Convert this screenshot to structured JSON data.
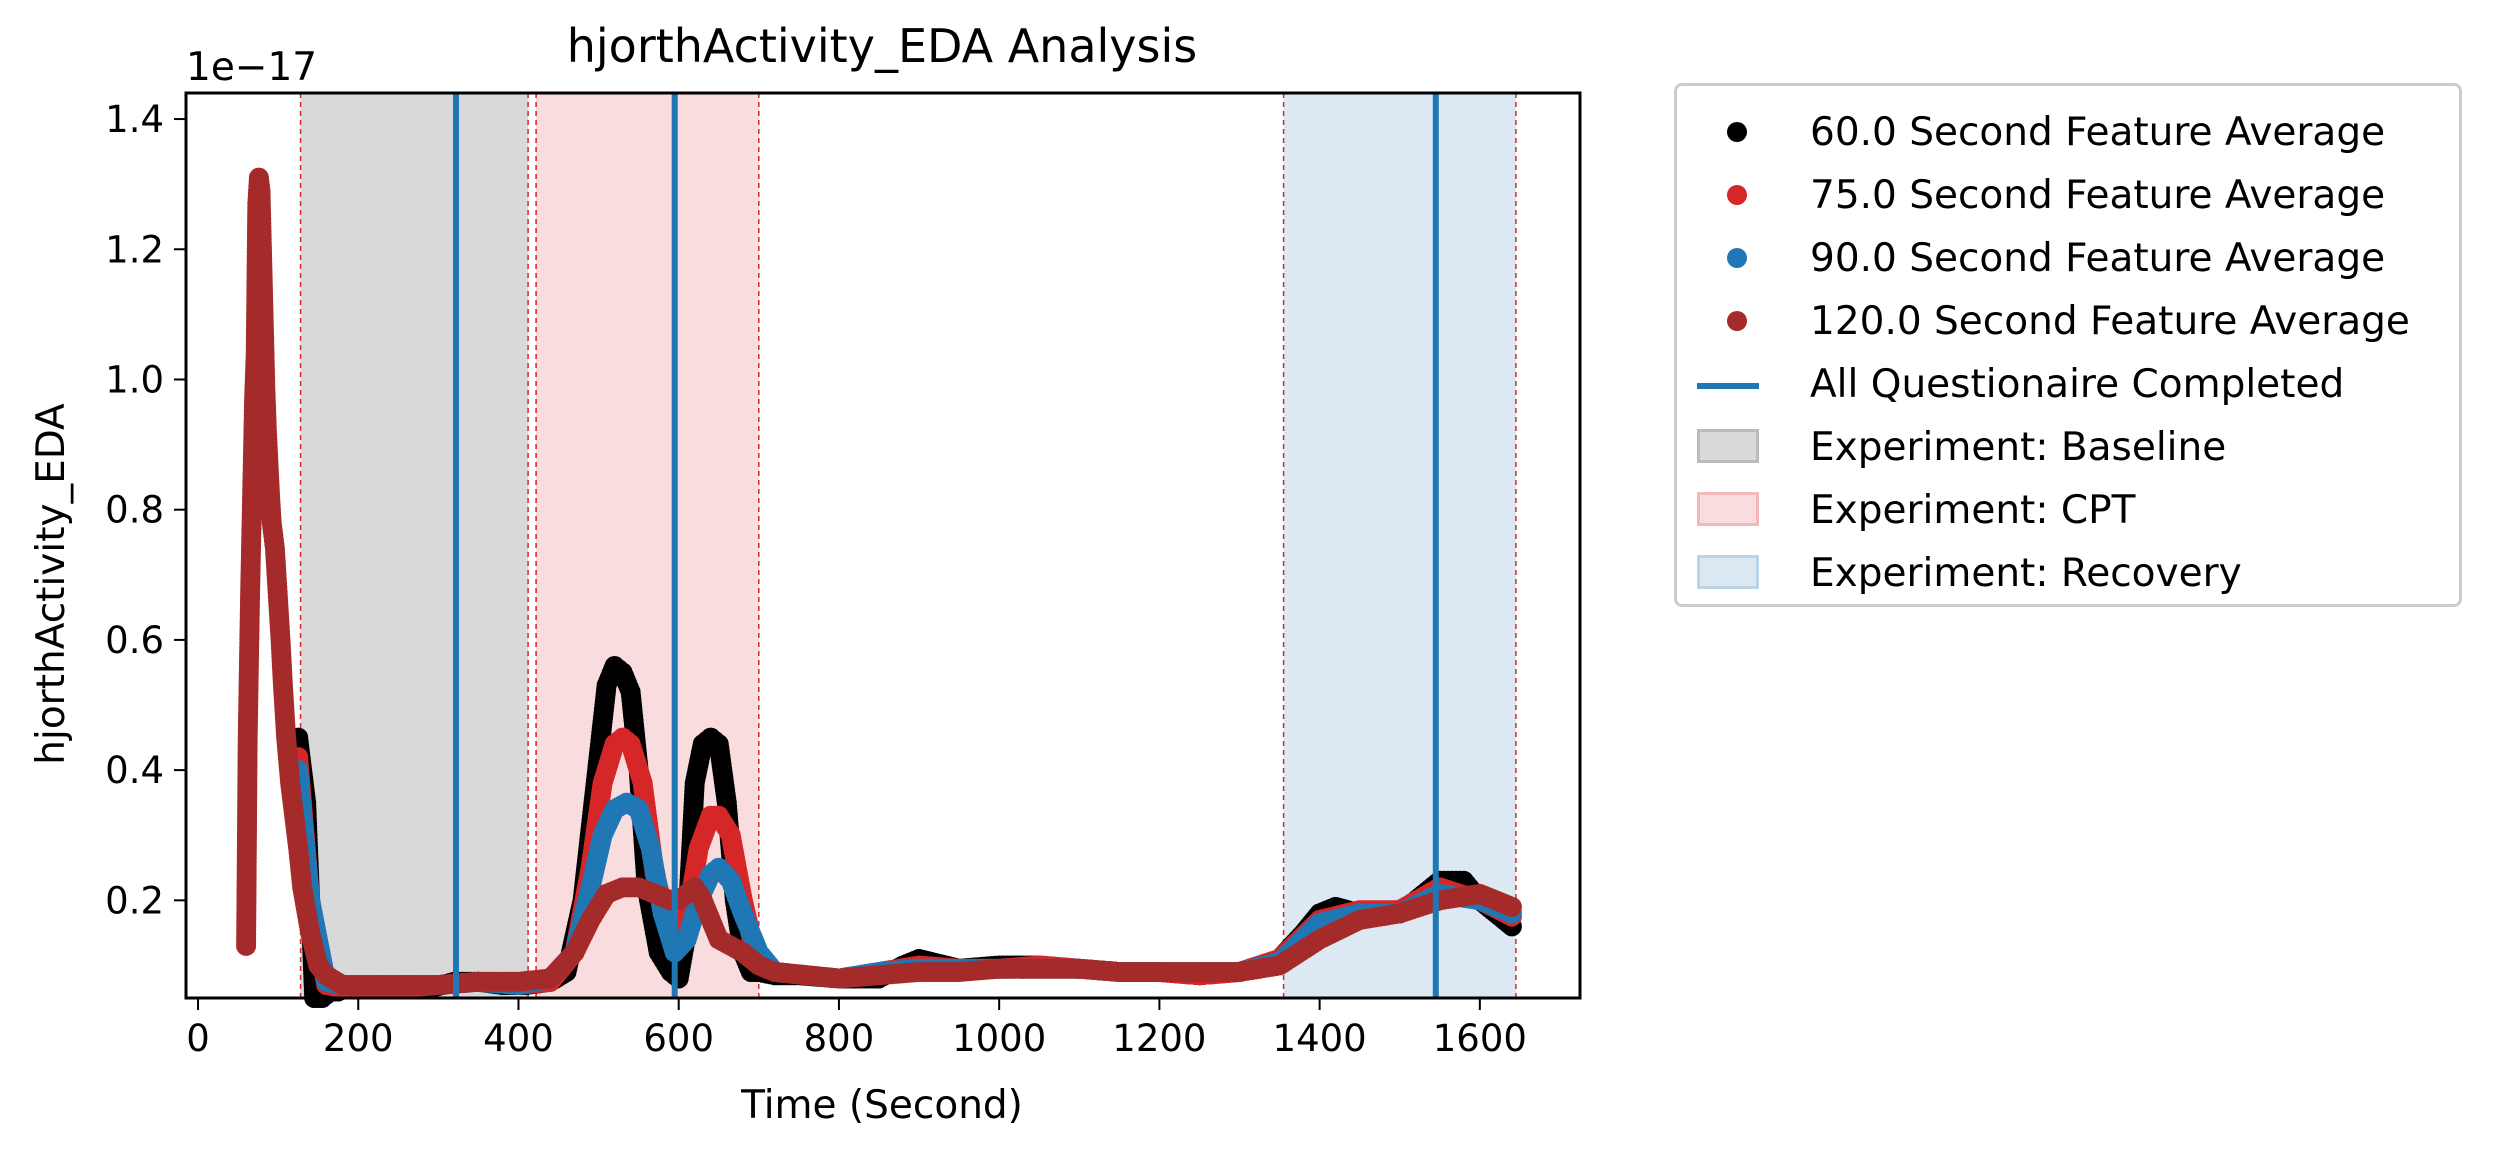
{
  "chart_data": {
    "type": "scatter",
    "title": "hjorthActivity_EDA Analysis",
    "xlabel": "Time (Second)",
    "ylabel": "hjorthActivity_EDA",
    "y_offset_label": "1e−17",
    "xlim": [
      -15,
      1725
    ],
    "ylim": [
      0.05,
      1.44
    ],
    "xticks": [
      0,
      200,
      400,
      600,
      800,
      1000,
      1200,
      1400,
      1600
    ],
    "yticks": [
      0.2,
      0.4,
      0.6,
      0.8,
      1.0,
      1.2,
      1.4
    ],
    "ytick_labels": [
      "0.2",
      "0.4",
      "0.6",
      "0.8",
      "1.0",
      "1.2",
      "1.4"
    ],
    "grid": false,
    "legend_position": "outside-right",
    "series": [
      {
        "name": "60.0 Second Feature Average",
        "color": "#000000",
        "x": [
          125,
          135,
          145,
          155,
          165,
          175,
          185,
          200,
          230,
          260,
          290,
          320,
          350,
          380,
          410,
          440,
          460,
          480,
          500,
          510,
          520,
          530,
          540,
          550,
          560,
          575,
          590,
          600,
          610,
          620,
          630,
          640,
          650,
          660,
          670,
          680,
          690,
          700,
          720,
          750,
          800,
          850,
          880,
          900,
          950,
          1000,
          1050,
          1100,
          1150,
          1200,
          1250,
          1300,
          1350,
          1380,
          1400,
          1420,
          1450,
          1500,
          1550,
          1580,
          1600,
          1620,
          1640
        ],
        "y": [
          0.45,
          0.35,
          0.05,
          0.05,
          0.06,
          0.06,
          0.065,
          0.065,
          0.065,
          0.07,
          0.065,
          0.075,
          0.075,
          0.07,
          0.07,
          0.075,
          0.09,
          0.2,
          0.42,
          0.53,
          0.56,
          0.55,
          0.52,
          0.4,
          0.22,
          0.12,
          0.09,
          0.08,
          0.15,
          0.38,
          0.44,
          0.45,
          0.44,
          0.35,
          0.2,
          0.12,
          0.09,
          0.09,
          0.085,
          0.085,
          0.08,
          0.08,
          0.1,
          0.11,
          0.095,
          0.1,
          0.1,
          0.095,
          0.09,
          0.09,
          0.085,
          0.09,
          0.11,
          0.15,
          0.18,
          0.19,
          0.18,
          0.18,
          0.23,
          0.23,
          0.2,
          0.18,
          0.16
        ]
      },
      {
        "name": "75.0 Second Feature Average",
        "color": "#d62728",
        "x": [
          125,
          140,
          160,
          180,
          200,
          250,
          300,
          350,
          400,
          440,
          470,
          490,
          505,
          520,
          530,
          540,
          555,
          570,
          590,
          600,
          610,
          625,
          640,
          650,
          665,
          680,
          695,
          720,
          760,
          800,
          850,
          900,
          950,
          1000,
          1050,
          1100,
          1150,
          1200,
          1250,
          1300,
          1350,
          1400,
          1450,
          1500,
          1550,
          1600,
          1640
        ],
        "y": [
          0.42,
          0.2,
          0.07,
          0.065,
          0.065,
          0.065,
          0.07,
          0.075,
          0.07,
          0.075,
          0.12,
          0.25,
          0.38,
          0.44,
          0.45,
          0.44,
          0.38,
          0.24,
          0.15,
          0.13,
          0.17,
          0.28,
          0.33,
          0.33,
          0.3,
          0.2,
          0.12,
          0.09,
          0.085,
          0.08,
          0.09,
          0.1,
          0.095,
          0.095,
          0.1,
          0.095,
          0.09,
          0.09,
          0.085,
          0.09,
          0.11,
          0.17,
          0.185,
          0.185,
          0.22,
          0.2,
          0.175
        ]
      },
      {
        "name": "90.0 Second Feature Average",
        "color": "#1f77b4",
        "x": [
          125,
          140,
          160,
          180,
          200,
          250,
          300,
          350,
          400,
          440,
          470,
          490,
          505,
          520,
          535,
          550,
          565,
          580,
          595,
          610,
          625,
          640,
          650,
          665,
          680,
          700,
          720,
          760,
          800,
          850,
          900,
          950,
          1000,
          1050,
          1100,
          1150,
          1200,
          1250,
          1300,
          1350,
          1400,
          1450,
          1500,
          1550,
          1600,
          1640
        ],
        "y": [
          0.4,
          0.2,
          0.075,
          0.07,
          0.07,
          0.07,
          0.07,
          0.075,
          0.07,
          0.08,
          0.12,
          0.22,
          0.3,
          0.34,
          0.35,
          0.34,
          0.28,
          0.18,
          0.12,
          0.14,
          0.2,
          0.24,
          0.25,
          0.23,
          0.18,
          0.12,
          0.09,
          0.085,
          0.08,
          0.09,
          0.095,
          0.095,
          0.095,
          0.095,
          0.095,
          0.09,
          0.09,
          0.09,
          0.09,
          0.105,
          0.165,
          0.18,
          0.18,
          0.21,
          0.2,
          0.18
        ]
      },
      {
        "name": "120.0 Second Feature Average",
        "color": "#a52a2a",
        "x": [
          60,
          62,
          65,
          68,
          70,
          72,
          74,
          76,
          78,
          80,
          82,
          84,
          86,
          88,
          90,
          92,
          94,
          96,
          98,
          100,
          103,
          106,
          110,
          115,
          120,
          125,
          130,
          140,
          150,
          160,
          180,
          200,
          250,
          300,
          350,
          400,
          440,
          470,
          490,
          510,
          530,
          550,
          570,
          590,
          600,
          610,
          620,
          630,
          640,
          650,
          665,
          680,
          700,
          720,
          760,
          800,
          850,
          900,
          950,
          1000,
          1050,
          1100,
          1150,
          1200,
          1250,
          1300,
          1350,
          1400,
          1450,
          1500,
          1550,
          1600,
          1640
        ],
        "y": [
          0.13,
          0.45,
          0.67,
          0.85,
          0.97,
          1.04,
          1.27,
          1.31,
          1.29,
          1.19,
          1.09,
          0.99,
          0.92,
          0.87,
          0.82,
          0.78,
          0.76,
          0.74,
          0.7,
          0.66,
          0.6,
          0.53,
          0.45,
          0.38,
          0.33,
          0.28,
          0.22,
          0.15,
          0.1,
          0.085,
          0.07,
          0.07,
          0.07,
          0.07,
          0.075,
          0.075,
          0.08,
          0.12,
          0.17,
          0.21,
          0.22,
          0.22,
          0.21,
          0.2,
          0.2,
          0.21,
          0.22,
          0.2,
          0.17,
          0.14,
          0.13,
          0.12,
          0.1,
          0.09,
          0.085,
          0.08,
          0.085,
          0.09,
          0.09,
          0.095,
          0.095,
          0.095,
          0.09,
          0.09,
          0.09,
          0.09,
          0.1,
          0.14,
          0.17,
          0.18,
          0.2,
          0.21,
          0.19
        ]
      }
    ],
    "vlines": {
      "name": "All Questionaire Completed",
      "color": "#1f77b4",
      "x": [
        322,
        595,
        1545
      ]
    },
    "spans": [
      {
        "name": "Experiment: Baseline",
        "start": 128,
        "end": 412,
        "fill": "#d9d9d9",
        "edge": "#bbbbbb"
      },
      {
        "name": "Experiment: CPT",
        "start": 422,
        "end": 700,
        "fill": "#f9dcdd",
        "edge": "#f2b8ba"
      },
      {
        "name": "Experiment: Recovery",
        "start": 1355,
        "end": 1645,
        "fill": "#dce9f3",
        "edge": "#bcd4e8"
      }
    ],
    "span_boundary_color": "#d62728"
  },
  "legend": {
    "items": [
      {
        "label": "60.0 Second Feature Average",
        "kind": "dot",
        "color": "#000000"
      },
      {
        "label": "75.0 Second Feature Average",
        "kind": "dot",
        "color": "#d62728"
      },
      {
        "label": "90.0 Second Feature Average",
        "kind": "dot",
        "color": "#1f77b4"
      },
      {
        "label": "120.0 Second Feature Average",
        "kind": "dot",
        "color": "#a52a2a"
      },
      {
        "label": "All Questionaire Completed",
        "kind": "line",
        "color": "#1f77b4"
      },
      {
        "label": "Experiment: Baseline",
        "kind": "patch",
        "color": "#d9d9d9"
      },
      {
        "label": "Experiment: CPT",
        "kind": "patch",
        "color": "#f9dcdd"
      },
      {
        "label": "Experiment: Recovery",
        "kind": "patch",
        "color": "#dce9f3"
      }
    ]
  }
}
